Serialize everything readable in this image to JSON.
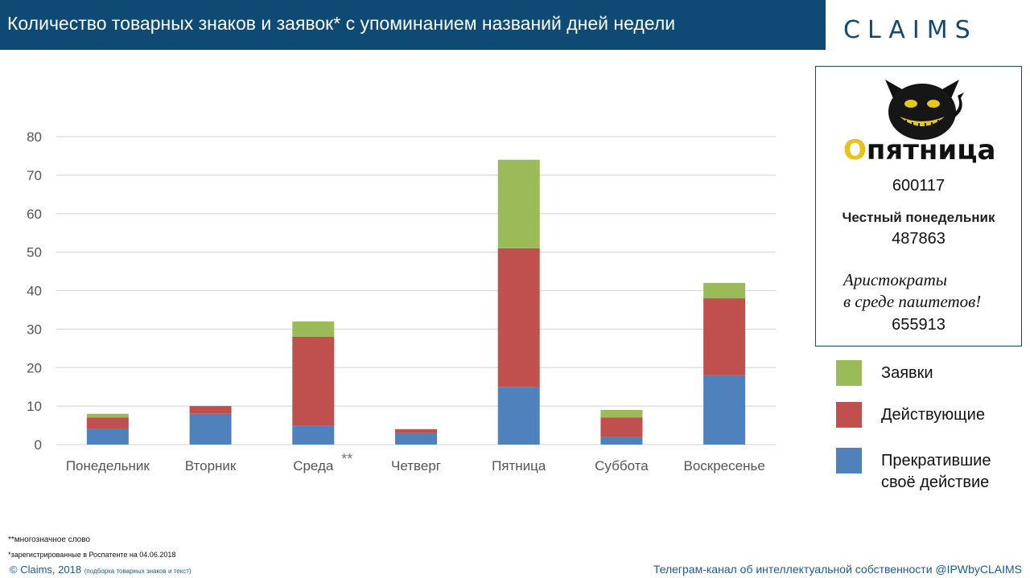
{
  "header": {
    "title": "Количество товарных знаков и заявок* с упоминанием названий дней недели",
    "logo": "CLAIMS"
  },
  "info_box": {
    "logo_first_letter": "О",
    "logo_rest": "пятница",
    "number1": "600117",
    "label2": "Честный понедельник",
    "number2": "487863",
    "label3_line1": "Аристократы",
    "label3_line2": "в среде паштетов!",
    "number3": "655913"
  },
  "legend": [
    {
      "label": "Заявки",
      "color": "#9bbb59"
    },
    {
      "label": "Действующие",
      "color": "#c0504d"
    },
    {
      "label": "Прекратившие своё действие",
      "color": "#4f81bd"
    }
  ],
  "chart_data": {
    "type": "bar",
    "stacked": true,
    "categories": [
      "Понедельник",
      "Вторник",
      "Среда",
      "Четверг",
      "Пятница",
      "Суббота",
      "Воскресенье"
    ],
    "series": [
      {
        "name": "Прекратившие своё действие",
        "color": "#4f81bd",
        "values": [
          4,
          8,
          5,
          3,
          15,
          2,
          18
        ]
      },
      {
        "name": "Действующие",
        "color": "#c0504d",
        "values": [
          3,
          2,
          23,
          1,
          36,
          5,
          20
        ]
      },
      {
        "name": "Заявки",
        "color": "#9bbb59",
        "values": [
          1,
          0,
          4,
          0,
          23,
          2,
          4
        ]
      }
    ],
    "ylim": [
      0,
      80
    ],
    "yticks": [
      0,
      10,
      20,
      30,
      40,
      50,
      60,
      70,
      80
    ],
    "grid": true,
    "annotations": [
      {
        "category": "Среда",
        "text": "**"
      }
    ]
  },
  "footer": {
    "note1": "**многозначное слово",
    "note2": "*зарегистрированные в Роспатенте на  04.06.2018",
    "copyright": "© Claims, 2018",
    "copyright_small": "(подборка товарных знаков и текст)",
    "telegram": "Телеграм-канал об интеллектуальной собственности @IPWbyCLAIMS"
  }
}
